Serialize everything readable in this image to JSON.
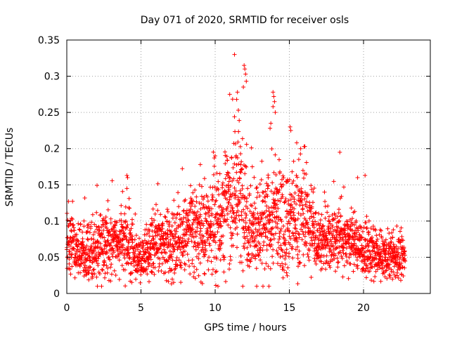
{
  "chart_data": {
    "type": "scatter",
    "title": "Day 071 of 2020, SRMTID for receiver osls",
    "xlabel": "GPS time / hours",
    "ylabel": "SRMTID / TECUs",
    "xlim": [
      0,
      24.5
    ],
    "ylim": [
      0,
      0.35
    ],
    "xticks": [
      0,
      5,
      10,
      15,
      20
    ],
    "xtick_labels": [
      "0",
      "5",
      "10",
      "15",
      "20"
    ],
    "yticks": [
      0,
      0.05,
      0.1,
      0.15,
      0.2,
      0.25,
      0.3,
      0.35
    ],
    "ytick_labels": [
      "0",
      "0.05",
      "0.1",
      "0.15",
      "0.2",
      "0.25",
      "0.3",
      "0.35"
    ],
    "grid": true,
    "marker": "+",
    "color": "#ff0000",
    "series": [
      {
        "name": "SRMTID osls",
        "profile_x": [
          0,
          0.5,
          1,
          1.5,
          2,
          2.5,
          3,
          3.5,
          4,
          4.5,
          5,
          5.5,
          6,
          6.5,
          7,
          7.5,
          8,
          8.5,
          9,
          9.5,
          10,
          10.5,
          11,
          11.5,
          12,
          12.5,
          13,
          13.5,
          14,
          14.5,
          15,
          15.5,
          16,
          16.5,
          17,
          17.5,
          18,
          18.5,
          19,
          19.5,
          20,
          20.5,
          21,
          21.5,
          22,
          22.8
        ],
        "profile_mean": [
          0.07,
          0.06,
          0.06,
          0.055,
          0.06,
          0.07,
          0.075,
          0.07,
          0.07,
          0.055,
          0.05,
          0.055,
          0.065,
          0.07,
          0.065,
          0.075,
          0.08,
          0.085,
          0.085,
          0.09,
          0.1,
          0.11,
          0.13,
          0.14,
          0.12,
          0.09,
          0.085,
          0.09,
          0.11,
          0.1,
          0.1,
          0.105,
          0.11,
          0.09,
          0.075,
          0.07,
          0.075,
          0.08,
          0.075,
          0.07,
          0.06,
          0.055,
          0.05,
          0.05,
          0.05,
          0.05
        ],
        "profile_spread": [
          0.022,
          0.02,
          0.02,
          0.02,
          0.02,
          0.022,
          0.025,
          0.02,
          0.025,
          0.018,
          0.015,
          0.02,
          0.022,
          0.022,
          0.022,
          0.025,
          0.028,
          0.03,
          0.03,
          0.03,
          0.035,
          0.04,
          0.045,
          0.05,
          0.045,
          0.03,
          0.03,
          0.035,
          0.04,
          0.035,
          0.035,
          0.035,
          0.035,
          0.03,
          0.022,
          0.02,
          0.022,
          0.025,
          0.022,
          0.02,
          0.018,
          0.017,
          0.016,
          0.015,
          0.015,
          0.015
        ],
        "n_points": 2600,
        "outliers": [
          {
            "x": 4.05,
            "y": 0.163
          },
          {
            "x": 4.1,
            "y": 0.16
          },
          {
            "x": 4.05,
            "y": 0.145
          },
          {
            "x": 11.95,
            "y": 0.315
          },
          {
            "x": 12.0,
            "y": 0.31
          },
          {
            "x": 12.05,
            "y": 0.303
          },
          {
            "x": 12.1,
            "y": 0.293
          },
          {
            "x": 11.5,
            "y": 0.278
          },
          {
            "x": 11.45,
            "y": 0.268
          },
          {
            "x": 11.9,
            "y": 0.285
          },
          {
            "x": 11.3,
            "y": 0.244
          },
          {
            "x": 13.9,
            "y": 0.278
          },
          {
            "x": 13.95,
            "y": 0.272
          },
          {
            "x": 14.0,
            "y": 0.265
          },
          {
            "x": 13.9,
            "y": 0.258
          },
          {
            "x": 14.05,
            "y": 0.25
          },
          {
            "x": 13.75,
            "y": 0.235
          },
          {
            "x": 13.7,
            "y": 0.228
          },
          {
            "x": 15.05,
            "y": 0.23
          },
          {
            "x": 15.1,
            "y": 0.225
          },
          {
            "x": 18.4,
            "y": 0.195
          },
          {
            "x": 19.6,
            "y": 0.16
          },
          {
            "x": 20.1,
            "y": 0.163
          },
          {
            "x": 12.5,
            "y": 0.175
          },
          {
            "x": 10.0,
            "y": 0.19
          },
          {
            "x": 9.0,
            "y": 0.178
          }
        ]
      }
    ]
  }
}
